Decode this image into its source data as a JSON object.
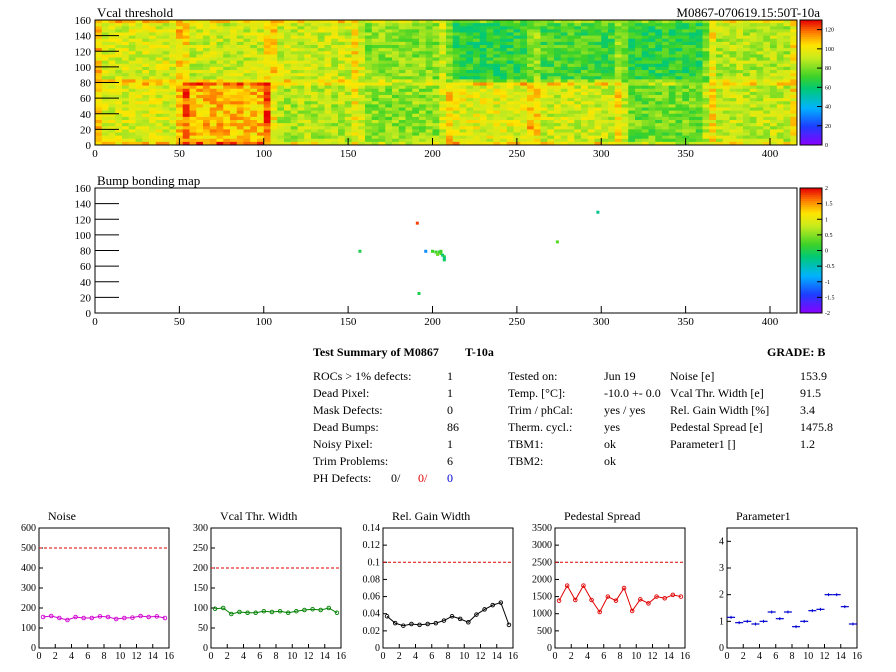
{
  "colors": {
    "red": "#e00000",
    "blue": "#0000d0",
    "magenta": "#d000d0",
    "green": "#008000",
    "black": "#000000"
  },
  "chart_data": [
    {
      "type": "heatmap",
      "title": "Vcal threshold",
      "id_text": "M0867-070619.15:50T-10a",
      "xlim": [
        0,
        416
      ],
      "ylim": [
        0,
        160
      ],
      "x_ticks": [
        "0",
        "50",
        "100",
        "150",
        "200",
        "250",
        "300",
        "350",
        "400"
      ],
      "y_ticks": [
        "0",
        "20",
        "40",
        "60",
        "80",
        "100",
        "120",
        "140",
        "160"
      ],
      "z_ticks": [
        "0",
        "20",
        "40",
        "60",
        "80",
        "100",
        "120"
      ],
      "zlim": [
        0,
        130
      ],
      "roc_mean_threshold": [
        [
          95,
          92,
          92,
          82,
          68,
          72,
          68,
          88
        ],
        [
          95,
          108,
          88,
          82,
          96,
          92,
          78,
          90
        ]
      ]
    },
    {
      "type": "heatmap",
      "title": "Bump bonding map",
      "xlim": [
        0,
        416
      ],
      "ylim": [
        0,
        160
      ],
      "x_ticks": [
        "0",
        "50",
        "100",
        "150",
        "200",
        "250",
        "300",
        "350",
        "400"
      ],
      "y_ticks": [
        "0",
        "20",
        "40",
        "60",
        "80",
        "100",
        "120",
        "140",
        "160"
      ],
      "z_ticks": [
        "-2",
        "-1.5",
        "-1",
        "-0.5",
        "0",
        "0.5",
        "1",
        "1.5",
        "2"
      ],
      "zlim": [
        -2,
        2
      ],
      "hits": [
        [
          157,
          79,
          0
        ],
        [
          191,
          115,
          1.8
        ],
        [
          192,
          25,
          0
        ],
        [
          196,
          79,
          -1
        ],
        [
          200,
          79,
          0.2
        ],
        [
          202,
          78,
          0.2
        ],
        [
          204,
          78,
          0.1
        ],
        [
          205,
          76,
          0.3
        ],
        [
          206,
          74,
          -0.2
        ],
        [
          207,
          72,
          0.1
        ],
        [
          207,
          70,
          -0.3
        ],
        [
          207,
          68,
          -0.1
        ],
        [
          203,
          75,
          0.4
        ],
        [
          205,
          79,
          0.2
        ],
        [
          274,
          91,
          0.3
        ],
        [
          298,
          129,
          -0.3
        ]
      ]
    },
    {
      "type": "line",
      "title": "Noise",
      "color": "#d000d0",
      "xlim": [
        0,
        16
      ],
      "ylim": [
        0,
        600
      ],
      "ref": 500,
      "x_ticks": [
        "0",
        "2",
        "4",
        "6",
        "8",
        "10",
        "12",
        "14",
        "16"
      ],
      "y_ticks": [
        "0",
        "100",
        "200",
        "300",
        "400",
        "500",
        "600"
      ],
      "x": [
        0,
        1,
        2,
        3,
        4,
        5,
        6,
        7,
        8,
        9,
        10,
        11,
        12,
        13,
        14,
        15
      ],
      "values": [
        155,
        160,
        150,
        140,
        155,
        150,
        150,
        158,
        155,
        145,
        150,
        152,
        160,
        155,
        158,
        150
      ]
    },
    {
      "type": "line",
      "title": "Vcal Thr. Width",
      "color": "#008000",
      "xlim": [
        0,
        16
      ],
      "ylim": [
        0,
        300
      ],
      "ref": 200,
      "x_ticks": [
        "0",
        "2",
        "4",
        "6",
        "8",
        "10",
        "12",
        "14",
        "16"
      ],
      "y_ticks": [
        "0",
        "50",
        "100",
        "150",
        "200",
        "250",
        "300"
      ],
      "x": [
        0,
        1,
        2,
        3,
        4,
        5,
        6,
        7,
        8,
        9,
        10,
        11,
        12,
        13,
        14,
        15
      ],
      "values": [
        98,
        100,
        85,
        90,
        88,
        88,
        92,
        90,
        92,
        88,
        92,
        95,
        97,
        95,
        100,
        88
      ]
    },
    {
      "type": "line",
      "title": "Rel. Gain Width",
      "color": "#000000",
      "xlim": [
        0,
        16
      ],
      "ylim": [
        0,
        0.14
      ],
      "ref": 0.1,
      "x_ticks": [
        "0",
        "2",
        "4",
        "6",
        "8",
        "10",
        "12",
        "14",
        "16"
      ],
      "y_ticks": [
        "0",
        "0.02",
        "0.04",
        "0.06",
        "0.08",
        "0.1",
        "0.12",
        "0.14"
      ],
      "x": [
        0,
        1,
        2,
        3,
        4,
        5,
        6,
        7,
        8,
        9,
        10,
        11,
        12,
        13,
        14,
        15
      ],
      "values": [
        0.037,
        0.029,
        0.026,
        0.028,
        0.027,
        0.028,
        0.029,
        0.032,
        0.037,
        0.034,
        0.03,
        0.039,
        0.045,
        0.05,
        0.053,
        0.027
      ]
    },
    {
      "type": "line",
      "title": "Pedestal Spread",
      "color": "#e00000",
      "xlim": [
        0,
        16
      ],
      "ylim": [
        0,
        3500
      ],
      "ref": 2500,
      "x_ticks": [
        "0",
        "2",
        "4",
        "6",
        "8",
        "10",
        "12",
        "14",
        "16"
      ],
      "y_ticks": [
        "0",
        "500",
        "1000",
        "1500",
        "2000",
        "2500",
        "3000",
        "3500"
      ],
      "x": [
        0,
        1,
        2,
        3,
        4,
        5,
        6,
        7,
        8,
        9,
        10,
        11,
        12,
        13,
        14,
        15
      ],
      "values": [
        1380,
        1820,
        1400,
        1820,
        1400,
        1050,
        1500,
        1380,
        1750,
        1080,
        1420,
        1300,
        1500,
        1450,
        1550,
        1500
      ]
    },
    {
      "type": "scatter",
      "title": "Parameter1",
      "color": "#0000d0",
      "xlim": [
        0,
        16
      ],
      "ylim": [
        0,
        4.5
      ],
      "ref": null,
      "x_ticks": [
        "0",
        "2",
        "4",
        "6",
        "8",
        "10",
        "12",
        "14",
        "16"
      ],
      "y_ticks": [
        "0",
        "1",
        "2",
        "3",
        "4"
      ],
      "x": [
        0,
        1,
        2,
        3,
        4,
        5,
        6,
        7,
        8,
        9,
        10,
        11,
        12,
        13,
        14,
        15
      ],
      "values": [
        1.15,
        0.95,
        1.0,
        0.9,
        1.0,
        1.35,
        1.1,
        1.35,
        0.8,
        1.0,
        1.4,
        1.45,
        2.0,
        2.0,
        1.55,
        0.9
      ]
    }
  ],
  "summary": {
    "title": "Test Summary of M0867",
    "module": "T-10a",
    "grade": "GRADE:  B",
    "col1": [
      {
        "label": "ROCs > 1% defects:",
        "value": "1"
      },
      {
        "label": "Dead Pixel:",
        "value": "1"
      },
      {
        "label": "Mask Defects:",
        "value": "0"
      },
      {
        "label": "Dead Bumps:",
        "value": "86"
      },
      {
        "label": "Noisy Pixel:",
        "value": "1"
      },
      {
        "label": "Trim Problems:",
        "value": "6"
      }
    ],
    "ph_label": "PH Defects:",
    "ph_values": [
      "0/",
      "0/",
      "0"
    ],
    "col2": [
      {
        "label": "Tested on:",
        "value": "Jun 19"
      },
      {
        "label": "Temp. [°C]:",
        "value": "-10.0 +- 0.0"
      },
      {
        "label": "Trim / phCal:",
        "value": "yes / yes"
      },
      {
        "label": "Therm. cycl.:",
        "value": "yes"
      },
      {
        "label": "TBM1:",
        "value": "ok"
      },
      {
        "label": "TBM2:",
        "value": "ok"
      }
    ],
    "col3": [
      {
        "label": "Noise [e]",
        "value": "153.9"
      },
      {
        "label": "Vcal Thr. Width [e]",
        "value": "91.5"
      },
      {
        "label": "Rel. Gain Width [%]",
        "value": "3.4"
      },
      {
        "label": "Pedestal Spread [e]",
        "value": "1475.8"
      },
      {
        "label": "Parameter1 []",
        "value": "1.2"
      }
    ]
  }
}
